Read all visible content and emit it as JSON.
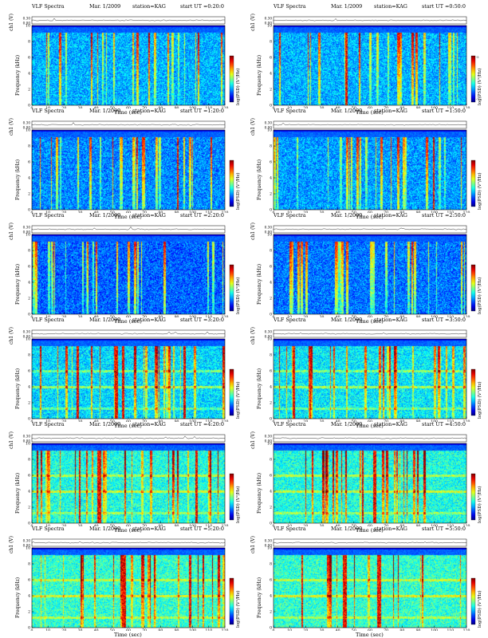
{
  "colors": {
    "colormap": "jet",
    "background": "#ffffff",
    "axis": "#000000"
  },
  "common": {
    "title": "VLF Spectra",
    "date": "Mar. 1/2009",
    "station": "station=KAG",
    "ch_label": "ch1 (V)",
    "freq_label": "Frequency (kHz)",
    "colorbar_label": "log(PSD) (V²/Hz)",
    "time_label": "Time (sec)",
    "ch_ticks": [
      "0.00",
      "0.30"
    ],
    "freq_ticks": [
      "0",
      "2",
      "4",
      "6",
      "8",
      "10"
    ]
  },
  "chart_data": [
    {
      "type": "heatmap",
      "start": "start UT =0:20:0",
      "x_range": [
        0,
        120
      ],
      "y_range_khz": [
        0,
        10
      ],
      "x_ticks": [
        "0",
        "10",
        "20",
        "30",
        "40",
        "50",
        "60",
        "70",
        "80",
        "90",
        "100",
        "110",
        "120"
      ],
      "colorbar_ticks": []
    },
    {
      "type": "heatmap",
      "start": "start UT =0:50:0",
      "x_range": [
        0,
        120
      ],
      "y_range_khz": [
        0,
        10
      ],
      "x_ticks": [
        "0",
        "10",
        "20",
        "30",
        "40",
        "50",
        "60",
        "70",
        "80",
        "90",
        "100",
        "110",
        "120"
      ],
      "colorbar_ticks": [
        "-5",
        "-7"
      ]
    },
    {
      "type": "heatmap",
      "start": "start UT =1:20:0",
      "x_range": [
        0,
        120
      ],
      "y_range_khz": [
        0,
        10
      ],
      "x_ticks": [
        "0",
        "10",
        "20",
        "30",
        "40",
        "50",
        "60",
        "70",
        "80",
        "90",
        "100",
        "110",
        "120"
      ],
      "colorbar_ticks": []
    },
    {
      "type": "heatmap",
      "start": "start UT =1:50:0",
      "x_range": [
        0,
        120
      ],
      "y_range_khz": [
        0,
        10
      ],
      "x_ticks": [
        "0",
        "10",
        "20",
        "30",
        "40",
        "50",
        "60",
        "70",
        "80",
        "90",
        "100",
        "110",
        "120"
      ],
      "colorbar_ticks": []
    },
    {
      "type": "heatmap",
      "start": "start UT =2:20:0",
      "x_range": [
        0,
        120
      ],
      "y_range_khz": [
        0,
        10
      ],
      "x_ticks": [
        "0",
        "10",
        "20",
        "30",
        "40",
        "50",
        "60",
        "70",
        "80",
        "90",
        "100",
        "110",
        "120"
      ],
      "colorbar_ticks": []
    },
    {
      "type": "heatmap",
      "start": "start UT =2:50:0",
      "x_range": [
        0,
        120
      ],
      "y_range_khz": [
        0,
        10
      ],
      "x_ticks": [
        "0",
        "10",
        "20",
        "30",
        "40",
        "50",
        "60",
        "70",
        "80",
        "90",
        "100",
        "110",
        "120"
      ],
      "colorbar_ticks": []
    },
    {
      "type": "heatmap",
      "start": "start UT =3:20:0",
      "x_range": [
        0,
        120
      ],
      "y_range_khz": [
        0,
        10
      ],
      "x_ticks": [
        "0",
        "10",
        "20",
        "30",
        "40",
        "50",
        "60",
        "70",
        "80",
        "90",
        "100",
        "110",
        "120"
      ],
      "colorbar_ticks": []
    },
    {
      "type": "heatmap",
      "start": "start UT =3:50:0",
      "x_range": [
        0,
        120
      ],
      "y_range_khz": [
        0,
        10
      ],
      "x_ticks": [
        "0",
        "10",
        "20",
        "30",
        "40",
        "50",
        "60",
        "70",
        "80",
        "90",
        "100",
        "110",
        "120"
      ],
      "colorbar_ticks": []
    },
    {
      "type": "heatmap",
      "start": "start UT =4:20:0",
      "x_range": [
        0,
        120
      ],
      "y_range_khz": [
        0,
        10
      ],
      "x_ticks": [
        "0",
        "10",
        "20",
        "30",
        "40",
        "50",
        "60",
        "70",
        "80",
        "90",
        "100",
        "110",
        "120"
      ],
      "colorbar_ticks": []
    },
    {
      "type": "heatmap",
      "start": "start UT =4:50:0",
      "x_range": [
        0,
        120
      ],
      "y_range_khz": [
        0,
        10
      ],
      "x_ticks": [
        "0",
        "10",
        "20",
        "30",
        "40",
        "50",
        "60",
        "70",
        "80",
        "90",
        "100",
        "110",
        "120"
      ],
      "colorbar_ticks": []
    },
    {
      "type": "heatmap",
      "start": "start UT =5:20:0",
      "x_range": [
        0,
        120
      ],
      "y_range_khz": [
        0,
        10
      ],
      "x_ticks": [
        "0",
        "10",
        "20",
        "30",
        "40",
        "50",
        "60",
        "70",
        "80",
        "90",
        "100",
        "110",
        "120"
      ],
      "colorbar_ticks": []
    },
    {
      "type": "heatmap",
      "start": "start UT =5:50:0",
      "x_range": [
        0,
        120
      ],
      "y_range_khz": [
        0,
        10
      ],
      "x_ticks": [
        "0",
        "10",
        "20",
        "30",
        "40",
        "50",
        "60",
        "70",
        "80",
        "90",
        "100",
        "110",
        "120"
      ],
      "colorbar_ticks": []
    }
  ]
}
